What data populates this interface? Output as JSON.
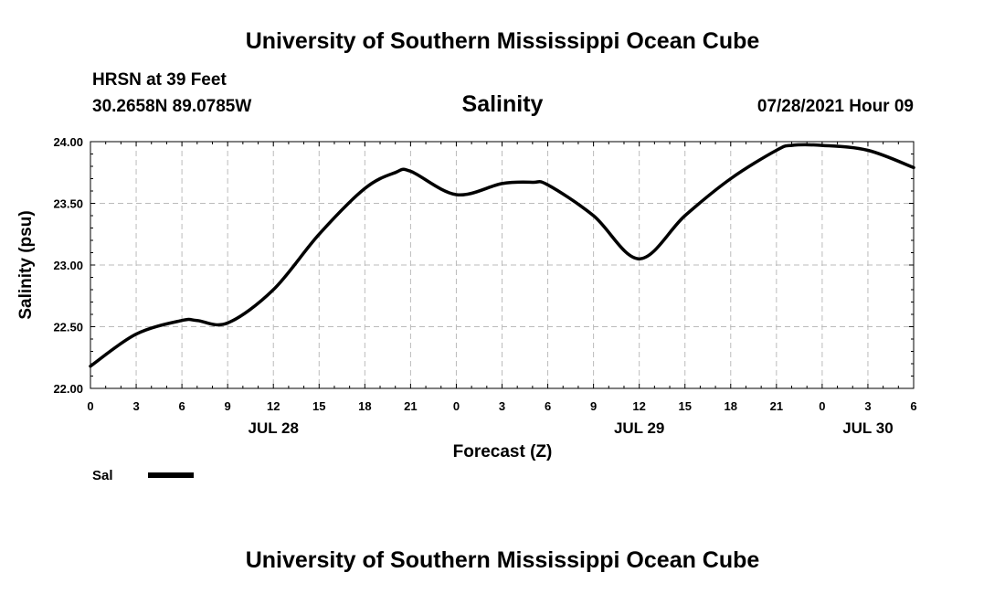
{
  "header": {
    "title_top": "University of Southern Mississippi Ocean Cube",
    "station": "HRSN at 39 Feet",
    "coords": "30.2658N  89.0785W",
    "chart_title": "Salinity",
    "datetime": "07/28/2021 Hour 09",
    "title_bottom": "University of Southern Mississippi Ocean Cube"
  },
  "colors": {
    "line": "#000000",
    "grid": "#bbbbbb"
  },
  "chart_data": {
    "type": "line",
    "title": "Salinity",
    "xlabel": "Forecast (Z)",
    "ylabel": "Salinity (psu)",
    "ylim": [
      22.0,
      24.0
    ],
    "xlim": [
      0,
      54
    ],
    "yticks": [
      22.0,
      22.5,
      23.0,
      23.5,
      24.0
    ],
    "ytick_labels": [
      "22.00",
      "22.50",
      "23.00",
      "23.50",
      "24.00"
    ],
    "xticks": [
      0,
      3,
      6,
      9,
      12,
      15,
      18,
      21,
      24,
      27,
      30,
      33,
      36,
      39,
      42,
      45,
      48,
      51,
      54
    ],
    "xtick_labels": [
      "0",
      "3",
      "6",
      "9",
      "12",
      "15",
      "18",
      "21",
      "0",
      "3",
      "6",
      "9",
      "12",
      "15",
      "18",
      "21",
      "0",
      "3",
      "6"
    ],
    "day_labels": [
      {
        "label": "JUL 28",
        "hour": 12
      },
      {
        "label": "JUL 29",
        "hour": 36
      },
      {
        "label": "JUL 30",
        "hour": 51
      }
    ],
    "grid": true,
    "legend_position": "bottom-left",
    "series": [
      {
        "name": "Sal",
        "x": [
          0,
          3,
          6,
          7,
          9,
          12,
          15,
          18,
          20,
          21,
          24,
          27,
          29,
          30,
          33,
          36,
          39,
          42,
          45,
          46,
          48,
          51,
          54
        ],
        "values": [
          22.18,
          22.44,
          22.55,
          22.55,
          22.53,
          22.8,
          23.25,
          23.62,
          23.75,
          23.76,
          23.57,
          23.66,
          23.67,
          23.65,
          23.4,
          23.05,
          23.4,
          23.7,
          23.93,
          23.97,
          23.97,
          23.93,
          23.79
        ]
      }
    ]
  }
}
